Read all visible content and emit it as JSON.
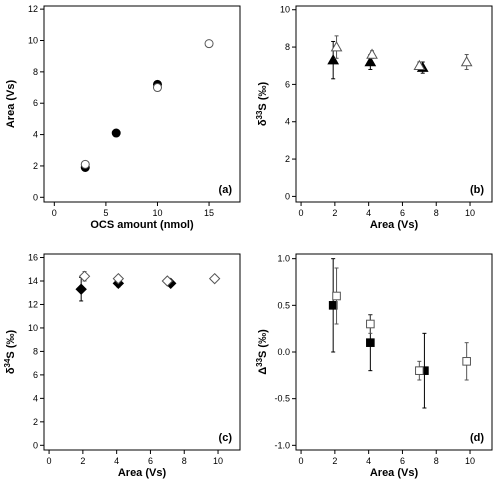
{
  "chart_data": [
    {
      "id": "a",
      "type": "scatter",
      "panel_label": "(a)",
      "xlabel": "OCS amount (nmol)",
      "ylabel": "Area (Vs)",
      "xlim": [
        -1,
        18
      ],
      "ylim": [
        -0.3,
        12.2
      ],
      "xticks": [
        0,
        5,
        10,
        15
      ],
      "yticks": [
        0,
        2,
        4,
        6,
        8,
        10,
        12
      ],
      "series": [
        {
          "marker": "circle",
          "filled": true,
          "points": [
            {
              "x": 3,
              "y": 1.9
            },
            {
              "x": 6,
              "y": 4.1
            },
            {
              "x": 10,
              "y": 7.2
            }
          ]
        },
        {
          "marker": "circle",
          "filled": false,
          "points": [
            {
              "x": 3,
              "y": 2.1
            },
            {
              "x": 10,
              "y": 7.0
            },
            {
              "x": 15,
              "y": 9.8
            }
          ]
        }
      ]
    },
    {
      "id": "b",
      "type": "scatter",
      "panel_label": "(b)",
      "xlabel": "Area (Vs)",
      "ylabel": "δ33S (‰)",
      "ylabel_parts": [
        "δ",
        "33",
        "S (‰)"
      ],
      "xlim": [
        -0.3,
        11.3
      ],
      "ylim": [
        -0.3,
        10.2
      ],
      "xticks": [
        0,
        2,
        4,
        6,
        8,
        10
      ],
      "yticks": [
        0,
        2,
        4,
        6,
        8,
        10
      ],
      "series": [
        {
          "marker": "triangle",
          "filled": true,
          "points": [
            {
              "x": 1.9,
              "y": 7.3,
              "err": 1.0
            },
            {
              "x": 4.1,
              "y": 7.2,
              "err": 0.4
            },
            {
              "x": 7.2,
              "y": 6.9,
              "err": 0.3
            }
          ]
        },
        {
          "marker": "triangle",
          "filled": false,
          "points": [
            {
              "x": 2.1,
              "y": 8.0,
              "err": 0.6
            },
            {
              "x": 4.2,
              "y": 7.6,
              "err": 0.2
            },
            {
              "x": 7.0,
              "y": 7.0,
              "err": 0.2
            },
            {
              "x": 9.8,
              "y": 7.2,
              "err": 0.4
            }
          ]
        }
      ]
    },
    {
      "id": "c",
      "type": "scatter",
      "panel_label": "(c)",
      "xlabel": "Area (Vs)",
      "ylabel": "δ34S (‰)",
      "ylabel_parts": [
        "δ",
        "34",
        "S (‰)"
      ],
      "xlim": [
        -0.3,
        11.3
      ],
      "ylim": [
        -0.4,
        16.3
      ],
      "xticks": [
        0,
        2,
        4,
        6,
        8,
        10
      ],
      "yticks": [
        0,
        2,
        4,
        6,
        8,
        10,
        12,
        14,
        16
      ],
      "series": [
        {
          "marker": "diamond",
          "filled": true,
          "points": [
            {
              "x": 1.9,
              "y": 13.3,
              "err": 1.0
            },
            {
              "x": 4.1,
              "y": 13.8,
              "err": 0.3
            },
            {
              "x": 7.2,
              "y": 13.8,
              "err": 0.2
            }
          ]
        },
        {
          "marker": "diamond",
          "filled": false,
          "points": [
            {
              "x": 2.1,
              "y": 14.4,
              "err": 0.4
            },
            {
              "x": 4.1,
              "y": 14.2,
              "err": 0.2
            },
            {
              "x": 7.0,
              "y": 14.0,
              "err": 0.2
            },
            {
              "x": 9.8,
              "y": 14.2,
              "err": 0.2
            }
          ]
        }
      ]
    },
    {
      "id": "d",
      "type": "scatter",
      "panel_label": "(d)",
      "xlabel": "Area (Vs)",
      "ylabel": "Δ33S (‰)",
      "ylabel_parts": [
        "Δ",
        "33",
        "S (‰)"
      ],
      "xlim": [
        -0.3,
        11.3
      ],
      "ylim": [
        -1.05,
        1.05
      ],
      "xticks": [
        0,
        2,
        4,
        6,
        8,
        10
      ],
      "yticks": [
        -1.0,
        -0.5,
        0.0,
        0.5,
        1.0
      ],
      "ytick_labels": [
        "-1.0",
        "-0.5",
        "0.0",
        "0.5",
        "1.0"
      ],
      "series": [
        {
          "marker": "square",
          "filled": true,
          "points": [
            {
              "x": 1.9,
              "y": 0.5,
              "err": 0.5
            },
            {
              "x": 4.1,
              "y": 0.1,
              "err": 0.3
            },
            {
              "x": 7.3,
              "y": -0.2,
              "err": 0.4
            }
          ]
        },
        {
          "marker": "square",
          "filled": false,
          "points": [
            {
              "x": 2.1,
              "y": 0.6,
              "err": 0.3
            },
            {
              "x": 4.1,
              "y": 0.3,
              "err": 0.1
            },
            {
              "x": 7.0,
              "y": -0.2,
              "err": 0.1
            },
            {
              "x": 9.8,
              "y": -0.1,
              "err": 0.2
            }
          ]
        }
      ]
    }
  ]
}
